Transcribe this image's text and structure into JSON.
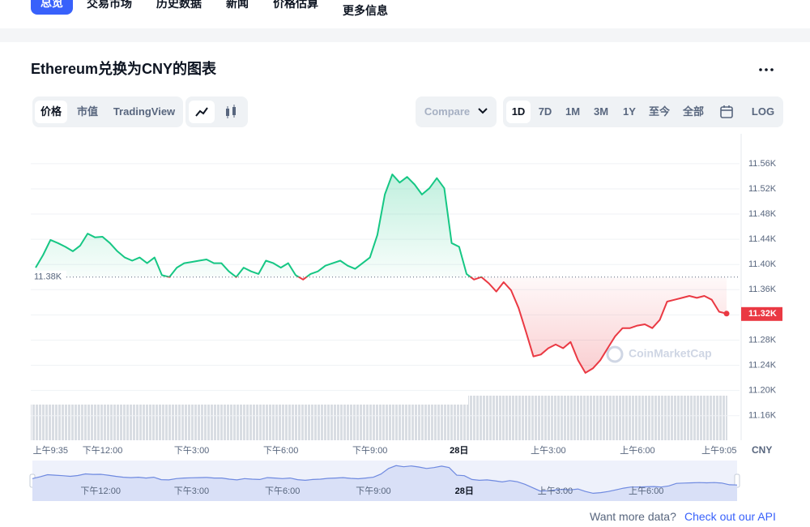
{
  "nav": {
    "items": [
      "总览",
      "交易市场",
      "历史数据",
      "新闻",
      "价格估算",
      "更多信息"
    ]
  },
  "chart_title": "Ethereum兑换为CNY的图表",
  "toolbar": {
    "views": [
      "价格",
      "市值",
      "TradingView"
    ],
    "compare": "Compare",
    "ranges": [
      "1D",
      "7D",
      "1M",
      "3M",
      "1Y",
      "至今",
      "全部"
    ],
    "log": "LOG"
  },
  "chart_data": {
    "type": "line",
    "currency": "CNY",
    "watermark": "CoinMarketCap",
    "colors": {
      "up": "#16c784",
      "down": "#ea3943"
    },
    "grid": true,
    "ylim": [
      11121,
      11601
    ],
    "yticks": [
      {
        "value": 11160,
        "label": "11.16K"
      },
      {
        "value": 11200,
        "label": "11.20K"
      },
      {
        "value": 11240,
        "label": "11.24K"
      },
      {
        "value": 11280,
        "label": "11.28K"
      },
      {
        "value": 11320,
        "label": "11.32K"
      },
      {
        "value": 11360,
        "label": "11.36K"
      },
      {
        "value": 11400,
        "label": "11.40K"
      },
      {
        "value": 11440,
        "label": "11.44K"
      },
      {
        "value": 11480,
        "label": "11.48K"
      },
      {
        "value": 11520,
        "label": "11.52K"
      },
      {
        "value": 11560,
        "label": "11.56K"
      }
    ],
    "baseline": {
      "value": 11380,
      "label": "11.38K"
    },
    "last": {
      "value": 11322,
      "label": "11.32K"
    },
    "categories": [
      null,
      null,
      "上午9:35",
      null,
      null,
      null,
      null,
      null,
      null,
      "下午12:00",
      null,
      null,
      null,
      null,
      null,
      null,
      null,
      null,
      null,
      null,
      null,
      "下午3:00",
      null,
      null,
      null,
      null,
      null,
      null,
      null,
      null,
      null,
      null,
      null,
      "下午6:00",
      null,
      null,
      null,
      null,
      null,
      null,
      null,
      null,
      null,
      null,
      null,
      "下午9:00",
      null,
      null,
      null,
      null,
      null,
      null,
      null,
      null,
      null,
      null,
      null,
      "28日",
      null,
      null,
      null,
      null,
      null,
      null,
      null,
      null,
      null,
      null,
      null,
      "上午3:00",
      null,
      null,
      null,
      null,
      null,
      null,
      null,
      null,
      null,
      null,
      null,
      "上午6:00",
      null,
      null,
      null,
      null,
      null,
      null,
      null,
      null,
      null,
      null,
      "上午9:05",
      null
    ],
    "values": [
      11395,
      11415,
      11439,
      11434,
      11428,
      11421,
      11430,
      11449,
      11443,
      11444,
      11434,
      11421,
      11411,
      11406,
      11411,
      11402,
      11411,
      11383,
      11380,
      11395,
      11402,
      11404,
      11406,
      11408,
      11402,
      11402,
      11389,
      11380,
      11395,
      11389,
      11385,
      11406,
      11402,
      11395,
      11402,
      11383,
      11376,
      11385,
      11389,
      11398,
      11402,
      11406,
      11398,
      11393,
      11402,
      11411,
      11447,
      11511,
      11543,
      11530,
      11539,
      11527,
      11511,
      11521,
      11537,
      11521,
      11434,
      11428,
      11385,
      11376,
      11380,
      11370,
      11357,
      11372,
      11359,
      11331,
      11293,
      11254,
      11257,
      11267,
      11273,
      11267,
      11277,
      11248,
      11228,
      11235,
      11248,
      11267,
      11286,
      11299,
      11299,
      11303,
      11305,
      11299,
      11312,
      11341,
      11344,
      11347,
      11350,
      11347,
      11350,
      11344,
      11325,
      11322
    ]
  },
  "footer": {
    "prompt": "Want more data?",
    "link": "Check out our API"
  }
}
